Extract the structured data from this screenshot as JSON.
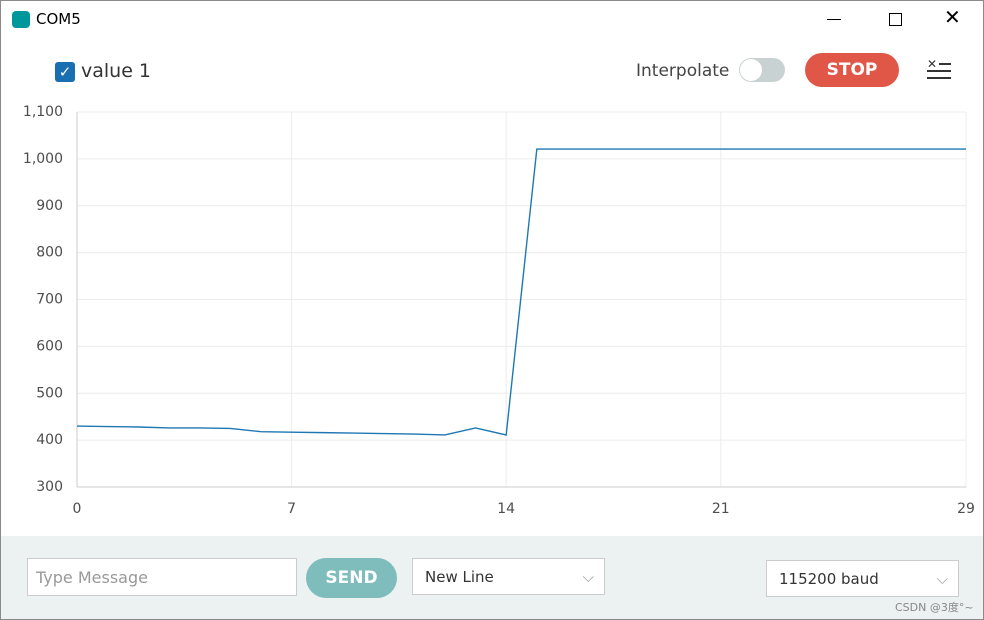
{
  "window": {
    "title": "COM5"
  },
  "toolbar": {
    "interpolate": "Interpolate",
    "stop": "STOP"
  },
  "footer": {
    "message_placeholder": "Type Message",
    "send": "SEND",
    "line_ending": "New Line",
    "baud": "115200 baud",
    "watermark": "CSDN @3度°~"
  },
  "chart_data": {
    "type": "line",
    "x": [
      0,
      1,
      2,
      3,
      4,
      5,
      6,
      7,
      8,
      9,
      10,
      11,
      12,
      13,
      14,
      15,
      16,
      17,
      18,
      19,
      20,
      21,
      22,
      23,
      24,
      25,
      26,
      27,
      28,
      29
    ],
    "series": [
      {
        "name": "value 1",
        "color": "#1f77b4",
        "values": [
          430,
          429,
          428,
          426,
          426,
          425,
          418,
          417,
          416,
          415,
          414,
          413,
          411,
          426,
          411,
          1021,
          1021,
          1021,
          1021,
          1021,
          1021,
          1021,
          1021,
          1021,
          1021,
          1021,
          1021,
          1021,
          1021,
          1021
        ]
      }
    ],
    "xlim": [
      0,
      29
    ],
    "xticks": [
      0,
      7,
      14,
      21,
      29
    ],
    "ylim": [
      300,
      1100
    ],
    "yticks": [
      300,
      400,
      500,
      600,
      700,
      800,
      900,
      {
        "value": 1000,
        "label": "1,000"
      },
      {
        "value": 1100,
        "label": "1,100"
      }
    ],
    "grid": true
  }
}
